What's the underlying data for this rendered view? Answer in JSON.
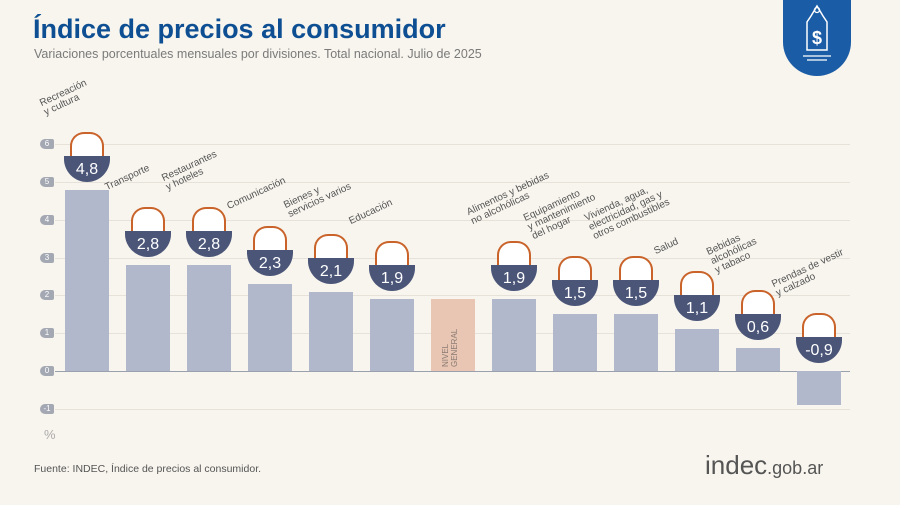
{
  "title": "Índice de precios al consumidor",
  "subtitle": "Variaciones porcentuales mensuales por divisiones. Total nacional. Julio de 2025",
  "source": "Fuente: INDEC, Índice de precios al consumidor.",
  "brand": {
    "main": "indec",
    "suffix": ".gob.ar"
  },
  "logo_icon": "price-tag-dollar-icon",
  "colors": {
    "title": "#0d4f92",
    "bar": "#b1b8cb",
    "highlight_bar": "#e8c6b3",
    "badge": "#4a5578",
    "logo": "#1a5ca6",
    "background": "#f8f5ee"
  },
  "chart_data": {
    "type": "bar",
    "unit_label": "%",
    "ylim": [
      -1,
      6
    ],
    "yticks": [
      "-1",
      "0",
      "1",
      "2",
      "3",
      "4",
      "5",
      "6"
    ],
    "grid": true,
    "categories": [
      "Recreación\ny cultura",
      "Transporte",
      "Restaurantes\ny hoteles",
      "Comunicación",
      "Bienes y\nservicios varios",
      "Educación",
      "NIVEL\nGENERAL",
      "Alimentos y bebidas\nno alcohólicas",
      "Equipamiento\ny mantenimiento\ndel hogar",
      "Vivienda, agua,\nelectricidad, gas y\notros combustibles",
      "Salud",
      "Bebidas\nalcohólicas\ny tabaco",
      "Prendas de vestir\ny calzado"
    ],
    "values": [
      4.8,
      2.8,
      2.8,
      2.3,
      2.1,
      1.9,
      1.9,
      1.9,
      1.5,
      1.5,
      1.1,
      0.6,
      -0.9
    ],
    "value_labels": [
      "4,8",
      "2,8",
      "2,8",
      "2,3",
      "2,1",
      "1,9",
      "1,9",
      "1,9",
      "1,5",
      "1,5",
      "1,1",
      "0,6",
      "-0,9"
    ],
    "highlight_index": 6,
    "icons": [
      "beach-umbrella-icon",
      "car-icon",
      "plate-cutlery-icon",
      "phone-icon",
      "comb-scissors-icon",
      "books-icon",
      "shopping-basket-icon",
      "chicken-icon",
      "washing-machine-icon",
      "lightbulb-icon",
      "first-aid-icon",
      "bottle-icon",
      "tshirt-icon"
    ]
  }
}
